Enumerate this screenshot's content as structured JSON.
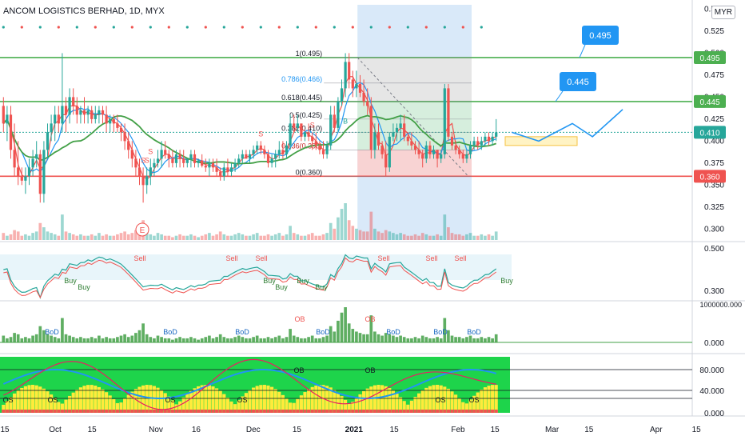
{
  "header": {
    "title": "ANCOM LOGISTICS BERHAD, 1D, MYX",
    "currency": "MYR"
  },
  "chart_data": {
    "type": "candlestick",
    "price_axis": {
      "ylim": [
        0.2875,
        0.555
      ],
      "ticks": [
        "0.550",
        "0.525",
        "0.500",
        "0.475",
        "0.450",
        "0.425",
        "0.400",
        "0.375",
        "0.350",
        "0.325",
        "0.300"
      ]
    },
    "x_axis": {
      "labels": [
        {
          "text": "15",
          "x": 0
        },
        {
          "text": "Oct",
          "x": 15
        },
        {
          "text": "15",
          "x": 26
        },
        {
          "text": "Nov",
          "x": 45
        },
        {
          "text": "16",
          "x": 57
        },
        {
          "text": "Dec",
          "x": 74
        },
        {
          "text": "15",
          "x": 87
        },
        {
          "text": "2021",
          "x": 104
        },
        {
          "text": "15",
          "x": 116
        },
        {
          "text": "Feb",
          "x": 135
        },
        {
          "text": "15",
          "x": 146
        },
        {
          "text": "Mar",
          "x": 163
        },
        {
          "text": "15",
          "x": 174
        },
        {
          "text": "Apr",
          "x": 194
        },
        {
          "text": "15",
          "x": 206
        }
      ]
    },
    "candles": [
      [
        0.44,
        0.45,
        0.41,
        0.42
      ],
      [
        0.42,
        0.44,
        0.4,
        0.43
      ],
      [
        0.43,
        0.44,
        0.38,
        0.39
      ],
      [
        0.39,
        0.42,
        0.36,
        0.37
      ],
      [
        0.37,
        0.4,
        0.35,
        0.36
      ],
      [
        0.36,
        0.37,
        0.35,
        0.355
      ],
      [
        0.355,
        0.37,
        0.34,
        0.36
      ],
      [
        0.36,
        0.38,
        0.35,
        0.37
      ],
      [
        0.37,
        0.39,
        0.36,
        0.38
      ],
      [
        0.38,
        0.4,
        0.37,
        0.385
      ],
      [
        0.385,
        0.39,
        0.33,
        0.34
      ],
      [
        0.34,
        0.4,
        0.33,
        0.39
      ],
      [
        0.39,
        0.42,
        0.38,
        0.41
      ],
      [
        0.41,
        0.43,
        0.4,
        0.42
      ],
      [
        0.42,
        0.44,
        0.4,
        0.43
      ],
      [
        0.43,
        0.44,
        0.41,
        0.42
      ],
      [
        0.42,
        0.5,
        0.41,
        0.44
      ],
      [
        0.44,
        0.45,
        0.41,
        0.43
      ],
      [
        0.43,
        0.46,
        0.42,
        0.45
      ],
      [
        0.45,
        0.46,
        0.43,
        0.44
      ],
      [
        0.44,
        0.45,
        0.42,
        0.43
      ],
      [
        0.43,
        0.44,
        0.42,
        0.435
      ],
      [
        0.435,
        0.45,
        0.42,
        0.43
      ],
      [
        0.43,
        0.44,
        0.42,
        0.435
      ],
      [
        0.435,
        0.44,
        0.42,
        0.425
      ],
      [
        0.425,
        0.44,
        0.42,
        0.43
      ],
      [
        0.43,
        0.44,
        0.42,
        0.435
      ],
      [
        0.435,
        0.44,
        0.42,
        0.43
      ],
      [
        0.43,
        0.44,
        0.41,
        0.42
      ],
      [
        0.42,
        0.43,
        0.41,
        0.425
      ],
      [
        0.425,
        0.43,
        0.41,
        0.42
      ],
      [
        0.42,
        0.43,
        0.41,
        0.415
      ],
      [
        0.415,
        0.42,
        0.4,
        0.41
      ],
      [
        0.41,
        0.42,
        0.39,
        0.4
      ],
      [
        0.4,
        0.41,
        0.38,
        0.39
      ],
      [
        0.39,
        0.4,
        0.37,
        0.38
      ],
      [
        0.38,
        0.39,
        0.36,
        0.37
      ],
      [
        0.37,
        0.38,
        0.35,
        0.36
      ],
      [
        0.36,
        0.37,
        0.33,
        0.35
      ],
      [
        0.35,
        0.37,
        0.34,
        0.36
      ],
      [
        0.36,
        0.38,
        0.35,
        0.37
      ],
      [
        0.37,
        0.38,
        0.36,
        0.375
      ],
      [
        0.375,
        0.39,
        0.37,
        0.38
      ],
      [
        0.38,
        0.4,
        0.37,
        0.39
      ],
      [
        0.39,
        0.4,
        0.38,
        0.385
      ],
      [
        0.385,
        0.39,
        0.37,
        0.38
      ],
      [
        0.38,
        0.39,
        0.37,
        0.375
      ],
      [
        0.375,
        0.39,
        0.37,
        0.385
      ],
      [
        0.385,
        0.39,
        0.37,
        0.38
      ],
      [
        0.38,
        0.39,
        0.37,
        0.375
      ],
      [
        0.375,
        0.38,
        0.37,
        0.38
      ],
      [
        0.38,
        0.39,
        0.37,
        0.385
      ],
      [
        0.385,
        0.39,
        0.37,
        0.375
      ],
      [
        0.375,
        0.38,
        0.37,
        0.378
      ],
      [
        0.378,
        0.385,
        0.37,
        0.372
      ],
      [
        0.372,
        0.38,
        0.365,
        0.37
      ],
      [
        0.37,
        0.38,
        0.36,
        0.375
      ],
      [
        0.375,
        0.38,
        0.365,
        0.37
      ],
      [
        0.37,
        0.38,
        0.36,
        0.365
      ],
      [
        0.365,
        0.37,
        0.355,
        0.36
      ],
      [
        0.36,
        0.375,
        0.355,
        0.37
      ],
      [
        0.37,
        0.38,
        0.36,
        0.365
      ],
      [
        0.365,
        0.375,
        0.36,
        0.37
      ],
      [
        0.37,
        0.38,
        0.365,
        0.375
      ],
      [
        0.375,
        0.385,
        0.37,
        0.38
      ],
      [
        0.38,
        0.39,
        0.375,
        0.385
      ],
      [
        0.385,
        0.39,
        0.38,
        0.38
      ],
      [
        0.38,
        0.39,
        0.375,
        0.385
      ],
      [
        0.385,
        0.395,
        0.38,
        0.39
      ],
      [
        0.39,
        0.4,
        0.385,
        0.395
      ],
      [
        0.395,
        0.4,
        0.385,
        0.39
      ],
      [
        0.39,
        0.395,
        0.38,
        0.385
      ],
      [
        0.385,
        0.39,
        0.37,
        0.375
      ],
      [
        0.375,
        0.385,
        0.37,
        0.38
      ],
      [
        0.38,
        0.39,
        0.37,
        0.385
      ],
      [
        0.385,
        0.4,
        0.38,
        0.39
      ],
      [
        0.39,
        0.4,
        0.38,
        0.385
      ],
      [
        0.385,
        0.4,
        0.38,
        0.395
      ],
      [
        0.395,
        0.43,
        0.39,
        0.42
      ],
      [
        0.42,
        0.43,
        0.41,
        0.415
      ],
      [
        0.415,
        0.43,
        0.41,
        0.42
      ],
      [
        0.42,
        0.42,
        0.4,
        0.405
      ],
      [
        0.405,
        0.41,
        0.4,
        0.41
      ],
      [
        0.41,
        0.42,
        0.4,
        0.405
      ],
      [
        0.405,
        0.41,
        0.39,
        0.4
      ],
      [
        0.4,
        0.41,
        0.39,
        0.395
      ],
      [
        0.395,
        0.4,
        0.385,
        0.39
      ],
      [
        0.39,
        0.4,
        0.38,
        0.385
      ],
      [
        0.385,
        0.4,
        0.38,
        0.395
      ],
      [
        0.395,
        0.44,
        0.39,
        0.43
      ],
      [
        0.43,
        0.44,
        0.41,
        0.415
      ],
      [
        0.415,
        0.45,
        0.41,
        0.445
      ],
      [
        0.445,
        0.47,
        0.44,
        0.46
      ],
      [
        0.46,
        0.5,
        0.45,
        0.49
      ],
      [
        0.49,
        0.5,
        0.46,
        0.47
      ],
      [
        0.47,
        0.48,
        0.45,
        0.46
      ],
      [
        0.46,
        0.48,
        0.45,
        0.465
      ],
      [
        0.465,
        0.475,
        0.45,
        0.455
      ],
      [
        0.455,
        0.47,
        0.44,
        0.445
      ],
      [
        0.445,
        0.46,
        0.43,
        0.44
      ],
      [
        0.44,
        0.45,
        0.38,
        0.39
      ],
      [
        0.39,
        0.42,
        0.38,
        0.41
      ],
      [
        0.41,
        0.42,
        0.39,
        0.395
      ],
      [
        0.395,
        0.4,
        0.38,
        0.385
      ],
      [
        0.385,
        0.4,
        0.36,
        0.37
      ],
      [
        0.37,
        0.41,
        0.365,
        0.405
      ],
      [
        0.405,
        0.42,
        0.4,
        0.41
      ],
      [
        0.41,
        0.42,
        0.4,
        0.415
      ],
      [
        0.415,
        0.43,
        0.4,
        0.42
      ],
      [
        0.42,
        0.43,
        0.4,
        0.405
      ],
      [
        0.405,
        0.41,
        0.395,
        0.4
      ],
      [
        0.4,
        0.41,
        0.39,
        0.395
      ],
      [
        0.395,
        0.4,
        0.385,
        0.39
      ],
      [
        0.39,
        0.4,
        0.38,
        0.385
      ],
      [
        0.385,
        0.39,
        0.37,
        0.38
      ],
      [
        0.38,
        0.4,
        0.375,
        0.395
      ],
      [
        0.395,
        0.4,
        0.38,
        0.385
      ],
      [
        0.385,
        0.395,
        0.38,
        0.39
      ],
      [
        0.39,
        0.39,
        0.37,
        0.38
      ],
      [
        0.38,
        0.39,
        0.375,
        0.385
      ],
      [
        0.385,
        0.465,
        0.38,
        0.46
      ],
      [
        0.46,
        0.465,
        0.4,
        0.405
      ],
      [
        0.405,
        0.41,
        0.39,
        0.395
      ],
      [
        0.395,
        0.4,
        0.385,
        0.39
      ],
      [
        0.39,
        0.395,
        0.38,
        0.385
      ],
      [
        0.385,
        0.39,
        0.375,
        0.38
      ],
      [
        0.38,
        0.39,
        0.375,
        0.385
      ],
      [
        0.385,
        0.4,
        0.38,
        0.395
      ],
      [
        0.395,
        0.405,
        0.39,
        0.4
      ],
      [
        0.4,
        0.405,
        0.39,
        0.395
      ],
      [
        0.395,
        0.405,
        0.39,
        0.4
      ],
      [
        0.4,
        0.41,
        0.395,
        0.405
      ],
      [
        0.405,
        0.41,
        0.395,
        0.4
      ],
      [
        0.4,
        0.41,
        0.395,
        0.405
      ],
      [
        0.405,
        0.425,
        0.4,
        0.41
      ]
    ],
    "volume": [
      5,
      3,
      4,
      7,
      6,
      3,
      4,
      3,
      5,
      6,
      12,
      9,
      6,
      5,
      4,
      3,
      18,
      6,
      5,
      4,
      3,
      4,
      3,
      3,
      4,
      3,
      5,
      3,
      4,
      3,
      3,
      4,
      5,
      6,
      4,
      5,
      7,
      9,
      14,
      6,
      4,
      3,
      5,
      4,
      3,
      3,
      2,
      3,
      4,
      3,
      3,
      4,
      3,
      2,
      3,
      4,
      5,
      3,
      4,
      6,
      4,
      3,
      3,
      4,
      5,
      4,
      3,
      3,
      4,
      5,
      3,
      3,
      4,
      3,
      4,
      5,
      3,
      4,
      10,
      5,
      4,
      3,
      3,
      4,
      5,
      3,
      3,
      4,
      5,
      12,
      8,
      16,
      22,
      26,
      14,
      10,
      8,
      7,
      6,
      6,
      20,
      8,
      6,
      5,
      7,
      6,
      5,
      4,
      5,
      4,
      3,
      3,
      4,
      3,
      5,
      4,
      3,
      3,
      4,
      3,
      18,
      9,
      5,
      4,
      4,
      3,
      4,
      5,
      3,
      3,
      4,
      3,
      4,
      3,
      6
    ],
    "horizontal_levels": [
      {
        "price": 0.495,
        "label": "0.495",
        "color": "#4caf50"
      },
      {
        "price": 0.445,
        "label": "0.445",
        "color": "#4caf50"
      },
      {
        "price": 0.41,
        "label": "0.410",
        "color": "#26a69a"
      },
      {
        "price": 0.36,
        "label": "0.360",
        "color": "#ef5350"
      }
    ],
    "fibonacci": [
      {
        "ratio": "1",
        "price": 0.495,
        "label": "1(0.495)"
      },
      {
        "ratio": "0.786",
        "price": 0.466,
        "label": "0.786(0.466)"
      },
      {
        "ratio": "0.618",
        "price": 0.445,
        "label": "0.618(0.445)"
      },
      {
        "ratio": "0.5",
        "price": 0.425,
        "label": "0.5(0.425)"
      },
      {
        "ratio": "0.382",
        "price": 0.41,
        "label": "0.382(0.410)"
      },
      {
        "ratio": "0.236",
        "price": 0.39,
        "label": "0.236(0.390)"
      },
      {
        "ratio": "0",
        "price": 0.36,
        "label": "0(0.360)"
      }
    ],
    "target_callouts": [
      "0.445",
      "0.495"
    ],
    "event_marker": "E",
    "signal_labels": {
      "s_marks": [
        "S",
        "S",
        "S",
        "S",
        "S"
      ],
      "b_mark": "B"
    },
    "oscillator_panel": {
      "axis_ticks": [
        "0.500",
        "0.300"
      ],
      "buy_labels": [
        "Buy",
        "Buy",
        "Buy",
        "Buy",
        "Buy",
        "Buy",
        "Buy"
      ],
      "sell_labels": [
        "Sell",
        "Sell",
        "Sell",
        "Sell",
        "Sell",
        "Sell"
      ]
    },
    "bod_panel": {
      "axis_ticks": [
        "1000000.000",
        "0.000"
      ],
      "bod_labels": [
        "BoD",
        "BoD",
        "BoD",
        "BoD",
        "BoD",
        "BoD",
        "BoD"
      ],
      "ob_labels": [
        "OB",
        "OB"
      ]
    },
    "stoch_panel": {
      "axis_ticks": [
        "80.000",
        "40.000",
        "0.000"
      ],
      "ob_labels": [
        "OB",
        "OB"
      ],
      "os_labels": [
        "OS",
        "OS",
        "OS",
        "OS",
        "OS",
        "OS"
      ]
    },
    "colors": {
      "up": "#26a69a",
      "down": "#ef5350",
      "ma_fast": "#ef5350",
      "ma_mid": "#2196f3",
      "ma_slow": "#43a047",
      "callout": "#2196f3",
      "zone_blue": "#cfe3f8",
      "zone_grey": "#e6e6e6",
      "zone_green": "#d6eedd",
      "zone_red": "#f8d3d3"
    }
  }
}
